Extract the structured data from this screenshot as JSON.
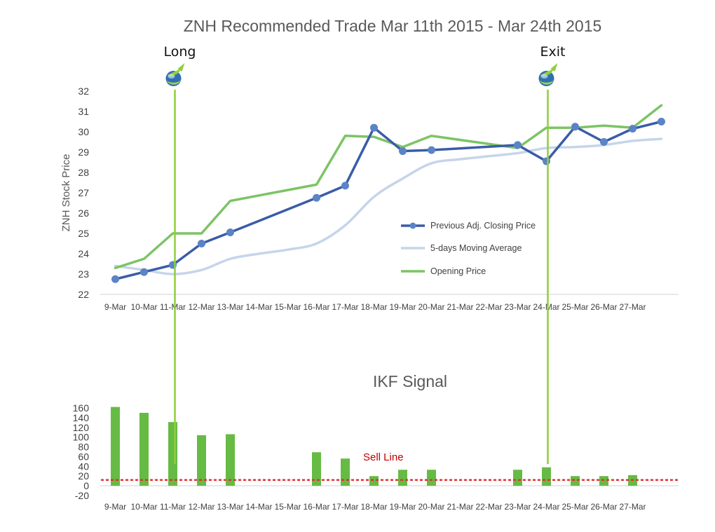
{
  "colors": {
    "closing": "#3a5ca8",
    "moving_average": "#c5d5ea",
    "opening": "#7cc465",
    "signal_bars": "#66bb44",
    "signal_lines": "#8fcf3c",
    "sell_line": "#e03030",
    "axis": "#d0d0d0"
  },
  "chart_data": [
    {
      "type": "line",
      "title": "ZNH Recommended Trade Mar 11th 2015 - Mar 24th 2015",
      "ylabel": "ZNH Stock Price",
      "xlabel": "",
      "categories": [
        "9-Mar",
        "10-Mar",
        "11-Mar",
        "12-Mar",
        "13-Mar",
        "14-Mar",
        "15-Mar",
        "16-Mar",
        "17-Mar",
        "18-Mar",
        "19-Mar",
        "20-Mar",
        "21-Mar",
        "22-Mar",
        "23-Mar",
        "24-Mar",
        "25-Mar",
        "26-Mar",
        "27-Mar"
      ],
      "ylim": [
        22,
        32
      ],
      "yticks": [
        22,
        23,
        24,
        25,
        26,
        27,
        28,
        29,
        30,
        31,
        32
      ],
      "grid": false,
      "legend_position": "center-right",
      "series": [
        {
          "name": "Previous Adj. Closing Price",
          "points": [
            [
              "9-Mar",
              22.75
            ],
            [
              "10-Mar",
              23.1
            ],
            [
              "11-Mar",
              23.45
            ],
            [
              "12-Mar",
              24.5
            ],
            [
              "13-Mar",
              25.05
            ],
            [
              "16-Mar",
              26.75
            ],
            [
              "17-Mar",
              27.35
            ],
            [
              "18-Mar",
              30.2
            ],
            [
              "19-Mar",
              29.05
            ],
            [
              "20-Mar",
              29.1
            ],
            [
              "23-Mar",
              29.35
            ],
            [
              "24-Mar",
              28.55
            ],
            [
              "25-Mar",
              30.25
            ],
            [
              "26-Mar",
              29.5
            ],
            [
              "27-Mar",
              30.15
            ],
            [
              "28-Mar",
              30.5
            ]
          ]
        },
        {
          "name": "5-days Moving Average",
          "points": [
            [
              "9-Mar",
              23.4
            ],
            [
              "10-Mar",
              23.2
            ],
            [
              "11-Mar",
              23.0
            ],
            [
              "12-Mar",
              23.2
            ],
            [
              "13-Mar",
              23.75
            ],
            [
              "14-Mar",
              24.0
            ],
            [
              "15-Mar",
              24.2
            ],
            [
              "16-Mar",
              24.5
            ],
            [
              "17-Mar",
              25.4
            ],
            [
              "18-Mar",
              26.8
            ],
            [
              "19-Mar",
              27.7
            ],
            [
              "20-Mar",
              28.45
            ],
            [
              "21-Mar",
              28.65
            ],
            [
              "22-Mar",
              28.8
            ],
            [
              "23-Mar",
              28.95
            ],
            [
              "24-Mar",
              29.2
            ],
            [
              "25-Mar",
              29.25
            ],
            [
              "26-Mar",
              29.35
            ],
            [
              "27-Mar",
              29.55
            ],
            [
              "28-Mar",
              29.65
            ]
          ]
        },
        {
          "name": "Opening Price",
          "points": [
            [
              "9-Mar",
              23.3
            ],
            [
              "10-Mar",
              23.75
            ],
            [
              "11-Mar",
              25.0
            ],
            [
              "12-Mar",
              25.0
            ],
            [
              "13-Mar",
              26.6
            ],
            [
              "16-Mar",
              27.4
            ],
            [
              "17-Mar",
              29.8
            ],
            [
              "18-Mar",
              29.75
            ],
            [
              "19-Mar",
              29.25
            ],
            [
              "20-Mar",
              29.8
            ],
            [
              "23-Mar",
              29.2
            ],
            [
              "24-Mar",
              30.2
            ],
            [
              "25-Mar",
              30.2
            ],
            [
              "26-Mar",
              30.3
            ],
            [
              "27-Mar",
              30.2
            ],
            [
              "28-Mar",
              31.3
            ]
          ]
        }
      ],
      "annotations": [
        {
          "label": "Long",
          "x": "11-Mar"
        },
        {
          "label": "Exit",
          "x": "24-Mar"
        }
      ]
    },
    {
      "type": "bar",
      "title": "IKF Signal",
      "xlabel": "",
      "ylabel": "",
      "categories": [
        "9-Mar",
        "10-Mar",
        "11-Mar",
        "12-Mar",
        "13-Mar",
        "14-Mar",
        "15-Mar",
        "16-Mar",
        "17-Mar",
        "18-Mar",
        "19-Mar",
        "20-Mar",
        "21-Mar",
        "22-Mar",
        "23-Mar",
        "24-Mar",
        "25-Mar",
        "26-Mar",
        "27-Mar"
      ],
      "values": [
        162,
        150,
        131,
        104,
        106,
        null,
        null,
        69,
        56,
        20,
        33,
        33,
        null,
        null,
        33,
        38,
        20,
        20,
        22
      ],
      "ylim": [
        -20,
        160
      ],
      "yticks": [
        -20,
        0,
        20,
        40,
        60,
        80,
        100,
        120,
        140,
        160
      ],
      "sell_line": {
        "label": "Sell Line",
        "value": 12
      }
    }
  ]
}
